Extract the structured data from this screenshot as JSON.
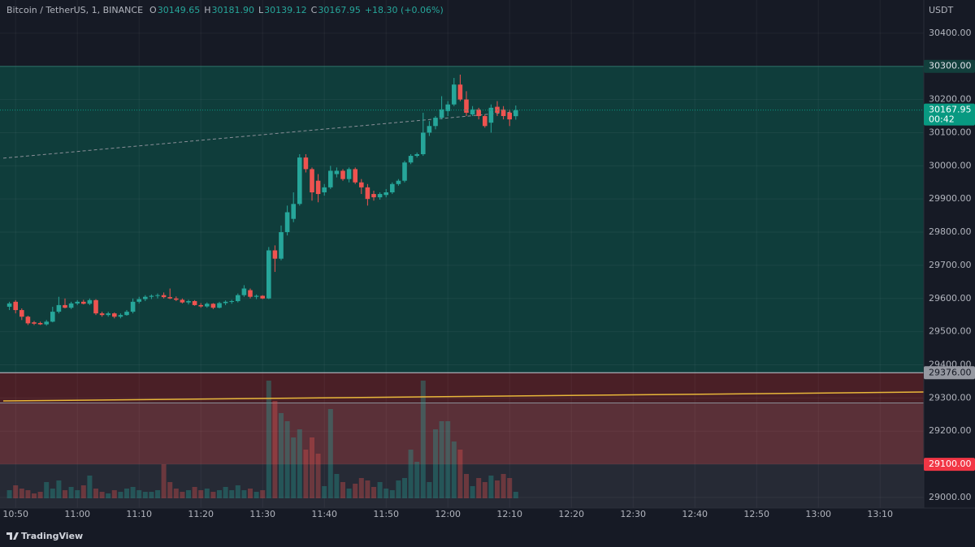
{
  "chart_data": {
    "type": "candlestick",
    "title": "Bitcoin / TetherUS, 1, BINANCE",
    "legend_values": [
      {
        "label": "O",
        "value": "30149.65"
      },
      {
        "label": "H",
        "value": "30181.90"
      },
      {
        "label": "L",
        "value": "30139.12"
      },
      {
        "label": "C",
        "value": "30167.95"
      }
    ],
    "change": "+18.30 (+0.06%)",
    "currency": "USDT",
    "brand": "TradingView",
    "up_color": "#26a69a",
    "down_color": "#ef5350",
    "x": [
      "10:49",
      "10:50",
      "10:51",
      "10:52",
      "10:53",
      "10:54",
      "10:55",
      "10:56",
      "10:57",
      "10:58",
      "10:59",
      "11:00",
      "11:01",
      "11:02",
      "11:03",
      "11:04",
      "11:05",
      "11:06",
      "11:07",
      "11:08",
      "11:09",
      "11:10",
      "11:11",
      "11:12",
      "11:13",
      "11:14",
      "11:15",
      "11:16",
      "11:17",
      "11:18",
      "11:19",
      "11:20",
      "11:21",
      "11:22",
      "11:23",
      "11:24",
      "11:25",
      "11:26",
      "11:27",
      "11:28",
      "11:29",
      "11:30",
      "11:31",
      "11:32",
      "11:33",
      "11:34",
      "11:35",
      "11:36",
      "11:37",
      "11:38",
      "11:39",
      "11:40",
      "11:41",
      "11:42",
      "11:43",
      "11:44",
      "11:45",
      "11:46",
      "11:47",
      "11:48",
      "11:49",
      "11:50",
      "11:51",
      "11:52",
      "11:53",
      "11:54",
      "11:55",
      "11:56",
      "11:57",
      "11:58",
      "11:59",
      "12:00",
      "12:01",
      "12:02",
      "12:03",
      "12:04",
      "12:05",
      "12:06",
      "12:07",
      "12:08",
      "12:09",
      "12:10",
      "12:11"
    ],
    "open": [
      29575,
      29590,
      29565,
      29545,
      29528,
      29526,
      29522,
      29530,
      29560,
      29580,
      29572,
      29585,
      29590,
      29584,
      29595,
      29555,
      29550,
      29555,
      29545,
      29550,
      29560,
      29590,
      29598,
      29605,
      29608,
      29610,
      29604,
      29600,
      29596,
      29588,
      29592,
      29580,
      29576,
      29584,
      29572,
      29586,
      29590,
      29592,
      29610,
      29625,
      29605,
      29608,
      29600,
      29745,
      29720,
      29800,
      29840,
      29885,
      30025,
      29990,
      29955,
      29920,
      29935,
      29975,
      29985,
      29960,
      29990,
      29950,
      29935,
      29915,
      29905,
      29912,
      29920,
      29945,
      29955,
      30010,
      30030,
      30035,
      30100,
      30120,
      30145,
      30165,
      30185,
      30245,
      30200,
      30155,
      30170,
      30150,
      30130,
      30178,
      30170,
      30160,
      30149.65
    ],
    "high": [
      29590,
      29595,
      29570,
      29548,
      29532,
      29530,
      29535,
      29575,
      29605,
      29600,
      29590,
      29595,
      29596,
      29600,
      29598,
      29560,
      29560,
      29558,
      29555,
      29565,
      29600,
      29605,
      29610,
      29612,
      29615,
      29618,
      29630,
      29606,
      29600,
      29596,
      29595,
      29586,
      29588,
      29586,
      29590,
      29594,
      29596,
      29615,
      29640,
      29630,
      29612,
      29610,
      29755,
      29760,
      29820,
      29880,
      29920,
      30035,
      30035,
      29995,
      29975,
      29945,
      30000,
      29995,
      29990,
      29995,
      29995,
      29960,
      29945,
      29925,
      29920,
      29930,
      29950,
      29960,
      30015,
      30035,
      30040,
      30160,
      30135,
      30150,
      30210,
      30195,
      30265,
      30275,
      30225,
      30180,
      30175,
      30155,
      30185,
      30195,
      30180,
      30170,
      30181.9
    ],
    "low": [
      29565,
      29555,
      29535,
      29520,
      29520,
      29520,
      29518,
      29528,
      29555,
      29570,
      29568,
      29580,
      29582,
      29580,
      29550,
      29545,
      29545,
      29540,
      29540,
      29548,
      29555,
      29585,
      29592,
      29598,
      29600,
      29600,
      29598,
      29592,
      29585,
      29582,
      29578,
      29572,
      29572,
      29568,
      29570,
      29580,
      29584,
      29588,
      29605,
      29600,
      29598,
      29598,
      29598,
      29680,
      29715,
      29790,
      29830,
      29880,
      29980,
      29895,
      29890,
      29910,
      29930,
      29965,
      29955,
      29950,
      29945,
      29915,
      29880,
      29895,
      29898,
      29905,
      29915,
      29940,
      29950,
      30005,
      30025,
      30030,
      30090,
      30110,
      30140,
      30150,
      30180,
      30195,
      30150,
      30150,
      30140,
      30115,
      30100,
      30150,
      30140,
      30120,
      30139.12
    ],
    "close": [
      29585,
      29565,
      29545,
      29525,
      29524,
      29522,
      29530,
      29560,
      29580,
      29572,
      29585,
      29590,
      29584,
      29595,
      29555,
      29550,
      29555,
      29545,
      29550,
      29560,
      29590,
      29598,
      29605,
      29608,
      29610,
      29604,
      29600,
      29596,
      29588,
      29592,
      29580,
      29576,
      29584,
      29572,
      29586,
      29590,
      29592,
      29610,
      29630,
      29605,
      29608,
      29600,
      29745,
      29720,
      29800,
      29860,
      29885,
      30025,
      29990,
      29920,
      29915,
      29935,
      29985,
      29985,
      29960,
      29990,
      29950,
      29935,
      29900,
      29905,
      29915,
      29920,
      29945,
      29955,
      30010,
      30030,
      30035,
      30100,
      30120,
      30145,
      30170,
      30185,
      30245,
      30200,
      30160,
      30170,
      30150,
      30120,
      30175,
      30160,
      30150,
      30140,
      30167.95
    ],
    "volume": [
      10,
      16,
      12,
      10,
      6,
      8,
      20,
      12,
      22,
      10,
      14,
      10,
      16,
      28,
      12,
      8,
      6,
      10,
      8,
      12,
      14,
      10,
      8,
      8,
      10,
      42,
      20,
      12,
      8,
      10,
      14,
      10,
      12,
      8,
      10,
      14,
      10,
      16,
      10,
      12,
      8,
      10,
      145,
      120,
      105,
      95,
      75,
      85,
      60,
      75,
      55,
      15,
      110,
      30,
      20,
      12,
      18,
      25,
      22,
      14,
      20,
      12,
      10,
      22,
      25,
      60,
      45,
      145,
      20,
      85,
      95,
      95,
      70,
      60,
      30,
      15,
      25,
      20,
      28,
      22,
      30,
      25,
      8
    ],
    "xlim": [
      "10:48",
      "13:18"
    ],
    "xticks": [
      "10:50",
      "11:00",
      "11:10",
      "11:20",
      "11:30",
      "11:40",
      "11:50",
      "12:00",
      "12:10",
      "12:20",
      "12:30",
      "12:40",
      "12:50",
      "13:00",
      "13:10"
    ],
    "ylim": [
      28968,
      30500
    ],
    "yticks": [
      {
        "value": 29000,
        "label": "29000.00"
      },
      {
        "value": 29100,
        "label": "29100.00"
      },
      {
        "value": 29200,
        "label": "29200.00"
      },
      {
        "value": 29300,
        "label": "29300.00"
      },
      {
        "value": 29400,
        "label": "29400.00"
      },
      {
        "value": 29500,
        "label": "29500.00"
      },
      {
        "value": 29600,
        "label": "29600.00"
      },
      {
        "value": 29700,
        "label": "29700.00"
      },
      {
        "value": 29800,
        "label": "29800.00"
      },
      {
        "value": 29900,
        "label": "29900.00"
      },
      {
        "value": 30000,
        "label": "30000.00"
      },
      {
        "value": 30100,
        "label": "30100.00"
      },
      {
        "value": 30200,
        "label": "30200.00"
      },
      {
        "value": 30300,
        "label": "30300.00"
      },
      {
        "value": 30400,
        "label": "30400.00"
      }
    ],
    "grid": true,
    "zones": [
      {
        "from": 29376,
        "to": 30300,
        "color": "#0f3d3b"
      },
      {
        "from": 29285,
        "to": 29376,
        "color": "#4a1f26"
      },
      {
        "from": 29100,
        "to": 29285,
        "color": "#5a3038"
      },
      {
        "from": 28968,
        "to": 29100,
        "color": "#262a35"
      }
    ],
    "trend_lines": [
      {
        "x": [
          "10:48",
          "13:18"
        ],
        "y": [
          29291,
          29318
        ],
        "color": "#e8b73a",
        "dash": false
      },
      {
        "x": [
          "10:48",
          "12:11"
        ],
        "y": [
          30023,
          30163
        ],
        "color": "#8a8f98",
        "dash": true
      }
    ],
    "price_tags": [
      {
        "value": 30300,
        "label": "30300.00",
        "bg": "#123f3c",
        "fg": "#e0e3eb"
      },
      {
        "value": 30167.95,
        "label": "30167.95",
        "countdown": "00:42",
        "bg": "#089981",
        "fg": "#ffffff"
      },
      {
        "value": 29376,
        "label": "29376.00",
        "bg": "#9598a1",
        "fg": "#131722"
      },
      {
        "value": 29100,
        "label": "29100.00",
        "bg": "#f23645",
        "fg": "#ffffff"
      }
    ]
  }
}
